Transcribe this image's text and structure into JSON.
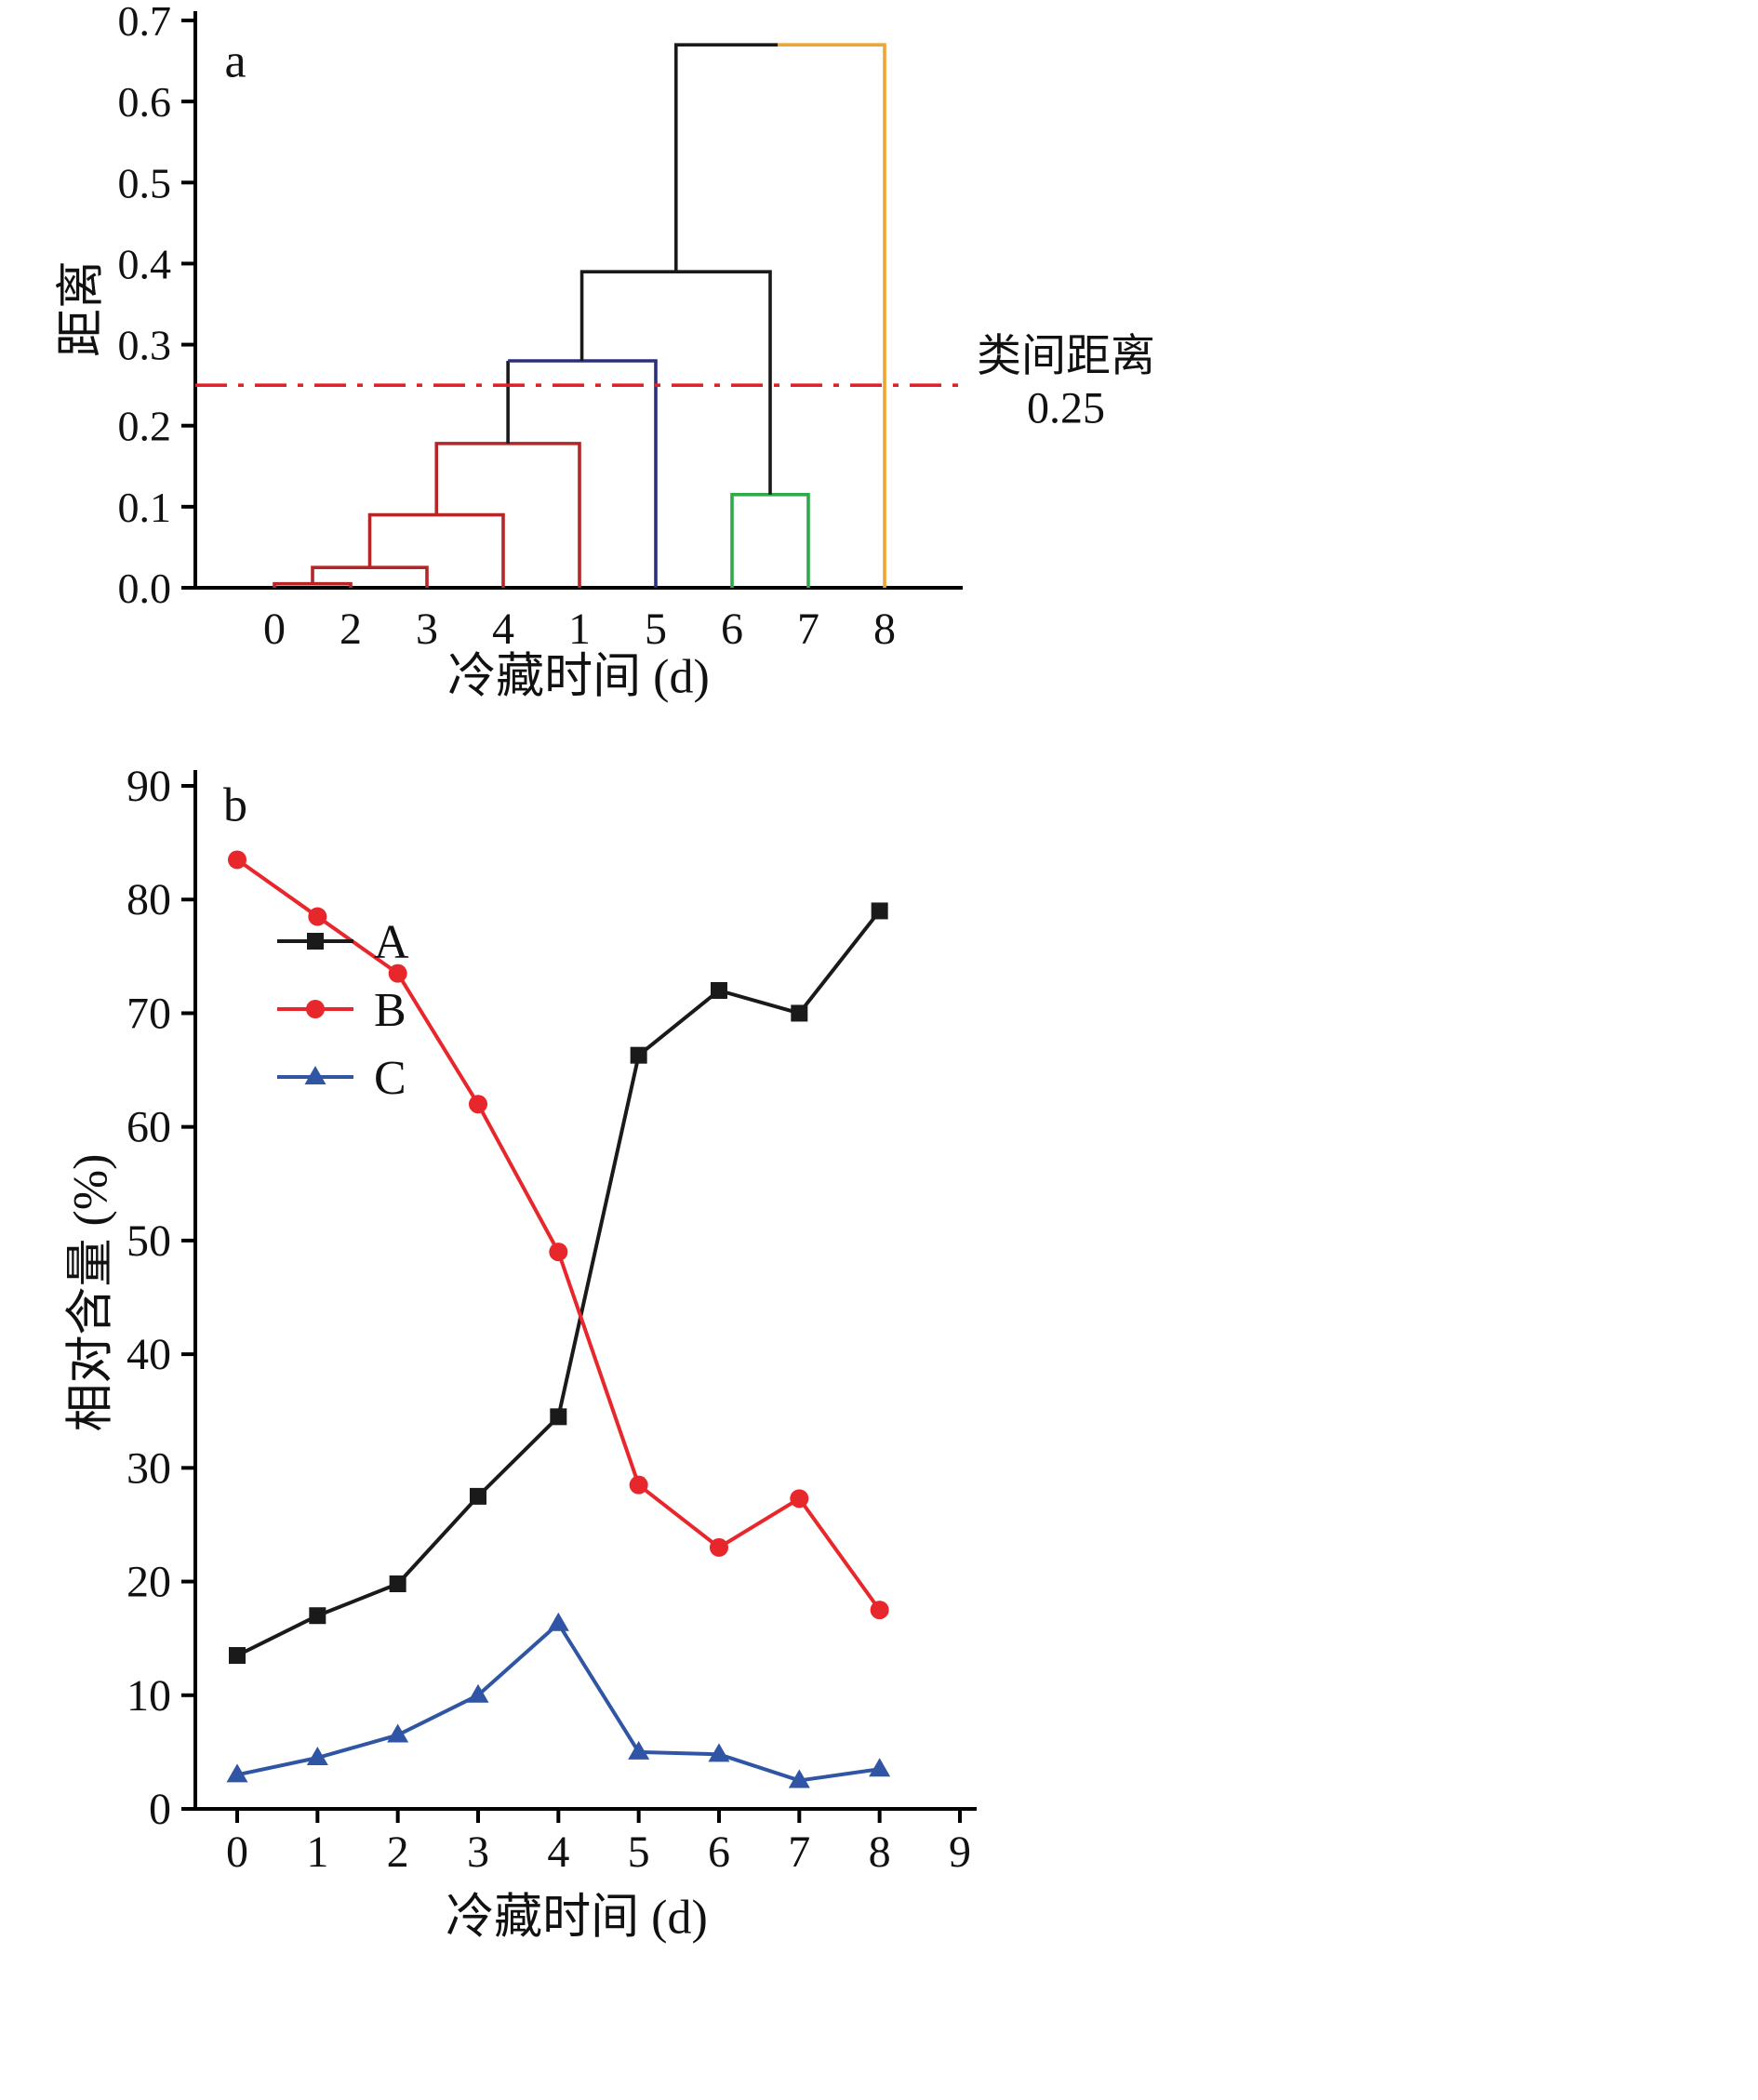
{
  "figure": {
    "background": "#ffffff",
    "panels": [
      "a",
      "b"
    ]
  },
  "chart_data": [
    {
      "type": "dendrogram",
      "panel_label": "a",
      "title": "",
      "xlabel": "冷藏时间 (d)",
      "ylabel": "距离",
      "ylim": [
        0,
        0.7
      ],
      "y_ticks": [
        0.0,
        0.1,
        0.2,
        0.3,
        0.4,
        0.5,
        0.6,
        0.7
      ],
      "leaf_order": [
        "0",
        "2",
        "3",
        "4",
        "1",
        "5",
        "6",
        "7",
        "8"
      ],
      "merges": [
        {
          "members": [
            "0",
            "2"
          ],
          "distance": 0.005
        },
        {
          "members": [
            "0",
            "2",
            "3"
          ],
          "distance": 0.025
        },
        {
          "members": [
            "0",
            "2",
            "3",
            "4"
          ],
          "distance": 0.09
        },
        {
          "members": [
            "0",
            "2",
            "3",
            "4",
            "1"
          ],
          "distance": 0.178
        },
        {
          "members": [
            "6",
            "7"
          ],
          "distance": 0.115
        },
        {
          "members": [
            "0",
            "2",
            "3",
            "4",
            "1",
            "5"
          ],
          "distance": 0.28
        },
        {
          "members": [
            "0",
            "2",
            "3",
            "4",
            "1",
            "5",
            "6",
            "7"
          ],
          "distance": 0.39
        },
        {
          "members": [
            "0",
            "2",
            "3",
            "4",
            "1",
            "5",
            "6",
            "7",
            "8"
          ],
          "distance": 0.67
        }
      ],
      "links": [
        {
          "x1": 0,
          "h1": 0,
          "x2": 1,
          "h2": 0,
          "h": 0.005,
          "color": "#b62626"
        },
        {
          "x1": 0.5,
          "h1": 0.005,
          "x2": 2,
          "h2": 0,
          "h": 0.025,
          "color": "#b62626"
        },
        {
          "x1": 1.25,
          "h1": 0.025,
          "x2": 3,
          "h2": 0,
          "h": 0.09,
          "color": "#b62626"
        },
        {
          "x1": 2.125,
          "h1": 0.09,
          "x2": 4,
          "h2": 0,
          "h": 0.178,
          "color": "#b62626"
        },
        {
          "x1": 3.0625,
          "h1": 0.178,
          "x2": 3.0625,
          "h2": 0.28,
          "h": 0.28,
          "color": "#1a1a1a"
        },
        {
          "x1": 3.0625,
          "h1": 0.28,
          "x2": 5,
          "h2": 0,
          "h": 0.28,
          "color": "#2c2f7e"
        },
        {
          "x1": 6,
          "h1": 0,
          "x2": 7,
          "h2": 0,
          "h": 0.115,
          "color": "#2faa4a"
        },
        {
          "x1": 4.03125,
          "h1": 0.28,
          "x2": 6.5,
          "h2": 0.115,
          "h": 0.39,
          "color": "#1a1a1a"
        },
        {
          "x1": 5.265625,
          "h1": 0.39,
          "x2": 6.6,
          "h2": 0.67,
          "h": 0.67,
          "color": "#1a1a1a"
        },
        {
          "x1": 6.6,
          "h1": 0.67,
          "x2": 8,
          "h2": 0,
          "h": 0.67,
          "color": "#f0a432"
        }
      ],
      "threshold_line": {
        "value": 0.25,
        "style": "dash-dot",
        "color": "#ea1c24",
        "label_line1": "类间距离",
        "label_line2": "0.25"
      },
      "grid": false
    },
    {
      "type": "line",
      "panel_label": "b",
      "title": "",
      "xlabel": "冷藏时间 (d)",
      "ylabel": "相对含量 (%)",
      "xlim": [
        -0.6,
        9.2
      ],
      "ylim": [
        0,
        90
      ],
      "x_ticks": [
        0,
        1,
        2,
        3,
        4,
        5,
        6,
        7,
        8,
        9
      ],
      "y_ticks": [
        0,
        10,
        20,
        30,
        40,
        50,
        60,
        70,
        80,
        90
      ],
      "x": [
        0,
        1,
        2,
        3,
        4,
        5,
        6,
        7,
        8
      ],
      "series": [
        {
          "name": "A",
          "color": "#1a1a1a",
          "marker": "square",
          "values": [
            13.5,
            17.0,
            19.8,
            27.5,
            34.5,
            66.3,
            72.0,
            70.0,
            79.0
          ]
        },
        {
          "name": "B",
          "color": "#e8272c",
          "marker": "circle",
          "values": [
            83.5,
            78.5,
            73.5,
            62.0,
            49.0,
            28.5,
            23.0,
            27.3,
            17.5
          ]
        },
        {
          "name": "C",
          "color": "#2f55a4",
          "marker": "triangle",
          "values": [
            3.0,
            4.5,
            6.5,
            10.0,
            16.3,
            5.0,
            4.8,
            2.5,
            3.5
          ]
        }
      ],
      "legend_position": "inside-upper-left",
      "grid": false
    }
  ]
}
